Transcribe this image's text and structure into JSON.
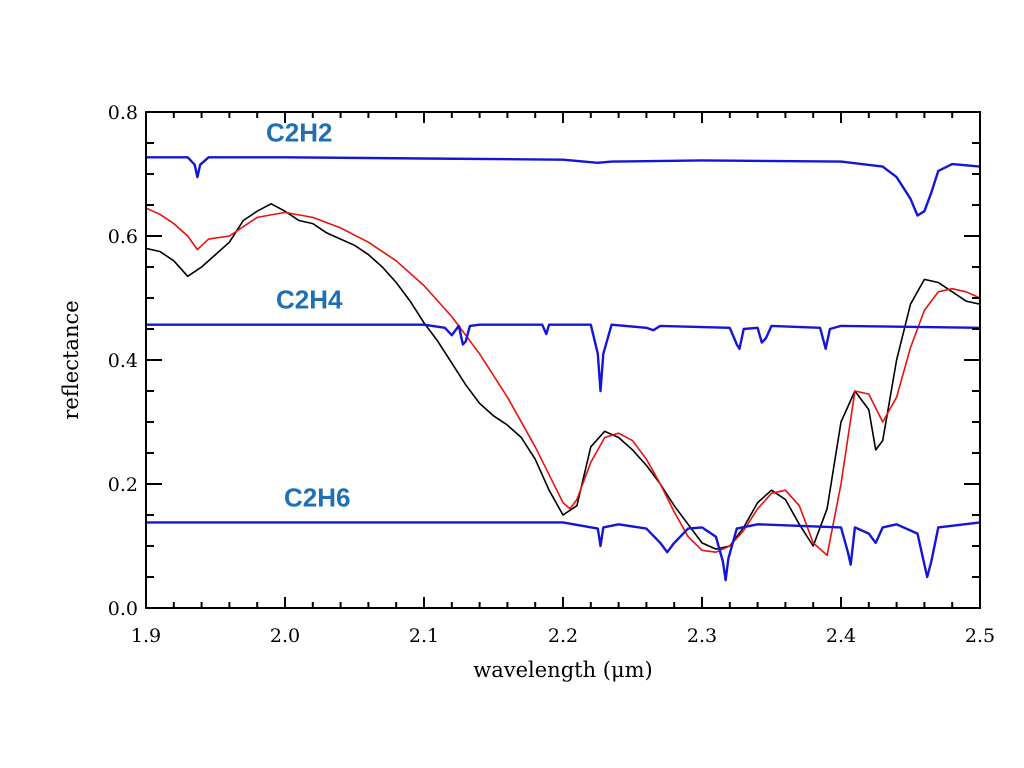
{
  "chart_data": {
    "type": "line",
    "xlabel": "wavelength (μm)",
    "ylabel": "reflectance",
    "xlim": [
      1.9,
      2.5
    ],
    "ylim": [
      0.0,
      0.8
    ],
    "x_ticks": [
      "1.9",
      "2.0",
      "2.1",
      "2.2",
      "2.3",
      "2.4",
      "2.5"
    ],
    "y_ticks": [
      "0.0",
      "0.2",
      "0.4",
      "0.6",
      "0.8"
    ],
    "grid": false,
    "series": [
      {
        "color": "#000000",
        "x": [
          1.9,
          1.91,
          1.92,
          1.93,
          1.94,
          1.95,
          1.96,
          1.97,
          1.98,
          1.99,
          2.0,
          2.01,
          2.02,
          2.03,
          2.04,
          2.05,
          2.06,
          2.07,
          2.08,
          2.09,
          2.1,
          2.11,
          2.12,
          2.13,
          2.14,
          2.15,
          2.16,
          2.17,
          2.18,
          2.19,
          2.2,
          2.21,
          2.22,
          2.23,
          2.24,
          2.25,
          2.26,
          2.27,
          2.28,
          2.29,
          2.3,
          2.31,
          2.32,
          2.33,
          2.34,
          2.35,
          2.36,
          2.37,
          2.38,
          2.39,
          2.4,
          2.41,
          2.42,
          2.425,
          2.43,
          2.44,
          2.45,
          2.46,
          2.47,
          2.48,
          2.49,
          2.5
        ],
        "y": [
          0.58,
          0.575,
          0.56,
          0.535,
          0.55,
          0.57,
          0.59,
          0.625,
          0.64,
          0.652,
          0.64,
          0.625,
          0.62,
          0.605,
          0.595,
          0.585,
          0.57,
          0.55,
          0.525,
          0.495,
          0.46,
          0.43,
          0.395,
          0.36,
          0.33,
          0.31,
          0.295,
          0.275,
          0.24,
          0.19,
          0.15,
          0.165,
          0.26,
          0.285,
          0.275,
          0.255,
          0.23,
          0.2,
          0.165,
          0.135,
          0.105,
          0.095,
          0.1,
          0.13,
          0.17,
          0.19,
          0.175,
          0.135,
          0.1,
          0.16,
          0.3,
          0.35,
          0.32,
          0.255,
          0.27,
          0.4,
          0.49,
          0.53,
          0.525,
          0.51,
          0.495,
          0.49
        ]
      },
      {
        "color": "#e8120c",
        "x": [
          1.9,
          1.91,
          1.92,
          1.93,
          1.937,
          1.945,
          1.96,
          1.98,
          2.0,
          2.02,
          2.04,
          2.06,
          2.08,
          2.1,
          2.12,
          2.14,
          2.16,
          2.18,
          2.19,
          2.2,
          2.205,
          2.21,
          2.22,
          2.23,
          2.24,
          2.25,
          2.26,
          2.27,
          2.28,
          2.29,
          2.3,
          2.31,
          2.32,
          2.33,
          2.34,
          2.35,
          2.36,
          2.37,
          2.38,
          2.39,
          2.4,
          2.41,
          2.42,
          2.43,
          2.44,
          2.45,
          2.46,
          2.47,
          2.48,
          2.49,
          2.5
        ],
        "y": [
          0.645,
          0.635,
          0.62,
          0.6,
          0.578,
          0.595,
          0.6,
          0.63,
          0.638,
          0.63,
          0.613,
          0.59,
          0.56,
          0.52,
          0.47,
          0.41,
          0.34,
          0.26,
          0.215,
          0.17,
          0.16,
          0.175,
          0.235,
          0.275,
          0.282,
          0.27,
          0.24,
          0.2,
          0.155,
          0.115,
          0.093,
          0.09,
          0.1,
          0.125,
          0.16,
          0.185,
          0.19,
          0.165,
          0.105,
          0.085,
          0.2,
          0.35,
          0.345,
          0.3,
          0.34,
          0.42,
          0.48,
          0.51,
          0.515,
          0.51,
          0.5
        ]
      },
      {
        "name": "C2H2",
        "color": "#1515d6",
        "x": [
          1.9,
          1.93,
          1.935,
          1.937,
          1.939,
          1.945,
          2.0,
          2.1,
          2.2,
          2.215,
          2.225,
          2.235,
          2.3,
          2.4,
          2.43,
          2.44,
          2.45,
          2.455,
          2.46,
          2.465,
          2.47,
          2.48,
          2.5
        ],
        "y": [
          0.727,
          0.727,
          0.715,
          0.695,
          0.715,
          0.727,
          0.727,
          0.725,
          0.723,
          0.72,
          0.718,
          0.72,
          0.722,
          0.72,
          0.712,
          0.695,
          0.66,
          0.633,
          0.64,
          0.67,
          0.705,
          0.716,
          0.712
        ]
      },
      {
        "name": "C2H4",
        "color": "#1515d6",
        "x": [
          1.9,
          2.0,
          2.1,
          2.115,
          2.12,
          2.125,
          2.128,
          2.13,
          2.133,
          2.14,
          2.185,
          2.188,
          2.19,
          2.22,
          2.225,
          2.227,
          2.229,
          2.235,
          2.26,
          2.265,
          2.27,
          2.32,
          2.325,
          2.327,
          2.33,
          2.34,
          2.343,
          2.346,
          2.35,
          2.385,
          2.389,
          2.392,
          2.4,
          2.5
        ],
        "y": [
          0.457,
          0.457,
          0.457,
          0.452,
          0.44,
          0.455,
          0.425,
          0.43,
          0.455,
          0.457,
          0.457,
          0.442,
          0.457,
          0.457,
          0.41,
          0.35,
          0.41,
          0.457,
          0.452,
          0.448,
          0.455,
          0.452,
          0.425,
          0.418,
          0.45,
          0.452,
          0.428,
          0.435,
          0.455,
          0.452,
          0.418,
          0.45,
          0.455,
          0.452
        ]
      },
      {
        "name": "C2H6",
        "color": "#1515d6",
        "x": [
          1.9,
          2.0,
          2.1,
          2.2,
          2.225,
          2.227,
          2.229,
          2.24,
          2.26,
          2.27,
          2.275,
          2.28,
          2.29,
          2.3,
          2.31,
          2.315,
          2.317,
          2.319,
          2.325,
          2.34,
          2.4,
          2.405,
          2.407,
          2.41,
          2.42,
          2.425,
          2.43,
          2.44,
          2.455,
          2.46,
          2.462,
          2.465,
          2.47,
          2.5
        ],
        "y": [
          0.138,
          0.138,
          0.138,
          0.138,
          0.128,
          0.1,
          0.13,
          0.135,
          0.128,
          0.105,
          0.09,
          0.105,
          0.128,
          0.13,
          0.115,
          0.075,
          0.045,
          0.08,
          0.128,
          0.135,
          0.13,
          0.09,
          0.07,
          0.13,
          0.12,
          0.105,
          0.13,
          0.135,
          0.12,
          0.07,
          0.05,
          0.075,
          0.13,
          0.138
        ]
      }
    ]
  }
}
